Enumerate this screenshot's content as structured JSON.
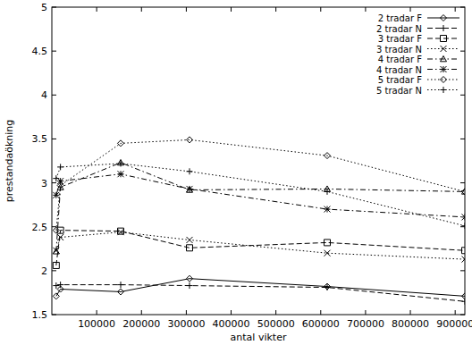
{
  "chart_data": {
    "type": "line",
    "x_label": "antal vikter",
    "y_label": "prestandaökning",
    "x": [
      9600,
      19200,
      153600,
      307200,
      614400,
      921600
    ],
    "xlim": [
      0,
      921600
    ],
    "xticks": [
      100000,
      200000,
      300000,
      400000,
      500000,
      600000,
      700000,
      800000,
      900000
    ],
    "ylim": [
      1.5,
      5
    ],
    "yticks": [
      1.5,
      2,
      2.5,
      3,
      3.5,
      4,
      4.5,
      5
    ],
    "grid": false,
    "legend": "top-right",
    "series": [
      {
        "name": "2 tradar F",
        "color": "#000000",
        "marker": "diamond",
        "line_style": "solid",
        "values": [
          1.71,
          1.79,
          1.76,
          1.91,
          1.82,
          1.71
        ]
      },
      {
        "name": "2 tradar N",
        "color": "#000000",
        "marker": "plus",
        "line_style": "dashed",
        "values": [
          1.83,
          1.84,
          1.84,
          1.83,
          1.81,
          1.65
        ]
      },
      {
        "name": "3 tradar F",
        "color": "#000000",
        "marker": "square",
        "line_style": "dashed",
        "values": [
          2.06,
          2.46,
          2.45,
          2.26,
          2.32,
          2.23
        ]
      },
      {
        "name": "3 tradar N",
        "color": "#000000",
        "marker": "cross",
        "line_style": "dotted",
        "values": [
          2.23,
          2.38,
          2.44,
          2.35,
          2.2,
          2.13
        ]
      },
      {
        "name": "4 tradar F",
        "color": "#000000",
        "marker": "triangle",
        "line_style": "dashdot",
        "values": [
          2.22,
          2.95,
          3.23,
          2.92,
          2.93,
          2.9
        ]
      },
      {
        "name": "4 tradar N",
        "color": "#000000",
        "marker": "star",
        "line_style": "dashdot",
        "values": [
          2.86,
          3.02,
          3.1,
          2.93,
          2.7,
          2.61
        ]
      },
      {
        "name": "5 tradar F",
        "color": "#000000",
        "marker": "diamond",
        "line_style": "dotted",
        "values": [
          2.46,
          2.97,
          3.45,
          3.49,
          3.31,
          2.9
        ]
      },
      {
        "name": "5 tradar N",
        "color": "#000000",
        "marker": "plus",
        "line_style": "dotted",
        "values": [
          3.05,
          3.18,
          3.22,
          3.13,
          2.9,
          2.51
        ]
      }
    ]
  }
}
